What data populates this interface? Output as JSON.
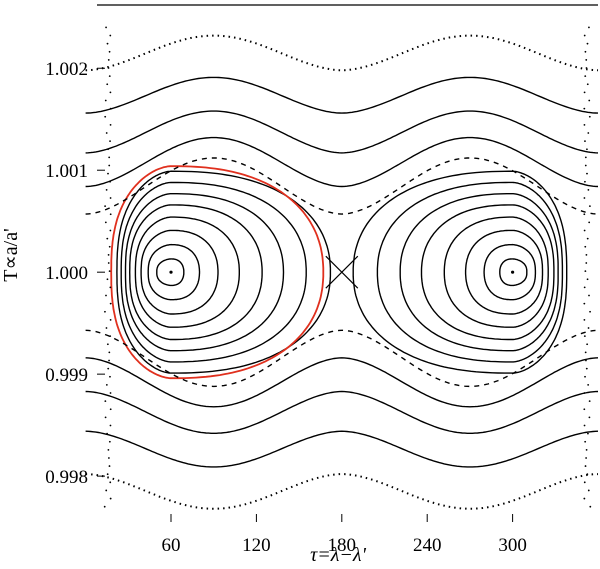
{
  "chart_data": {
    "type": "scatter",
    "xlabel": "τ=λ−λ'",
    "ylabel": "T∝a/a'",
    "xlim": [
      8,
      360
    ],
    "ylim": [
      0.99755,
      1.00263
    ],
    "xticks": [
      60,
      120,
      180,
      240,
      300
    ],
    "xtick_labels": [
      "60",
      "120",
      "180",
      "240",
      "300"
    ],
    "yticks": [
      0.998,
      0.999,
      1.0,
      1.001,
      1.002
    ],
    "ytick_labels": [
      "0.998",
      "0.999",
      "1.000",
      "1.001",
      "1.002"
    ],
    "grid": false,
    "legend": "none",
    "fixed_points": [
      {
        "tau": 60,
        "T": 1.0
      },
      {
        "tau": 300,
        "T": 1.0
      }
    ],
    "saddle_point": {
      "tau": 180,
      "T": 1.0
    },
    "tadpole_orbits": [
      {
        "tau_min": 50,
        "tau_max": 69,
        "dT": 0.00013
      },
      {
        "tau_min": 44,
        "tau_max": 80,
        "dT": 0.00027
      },
      {
        "tau_min": 39,
        "tau_max": 93,
        "dT": 0.00041
      },
      {
        "tau_min": 35,
        "tau_max": 108,
        "dT": 0.00054
      },
      {
        "tau_min": 31,
        "tau_max": 124,
        "dT": 0.00066
      },
      {
        "tau_min": 28,
        "tau_max": 139,
        "dT": 0.00077
      },
      {
        "tau_min": 25,
        "tau_max": 155,
        "dT": 0.00088
      },
      {
        "tau_min": 22,
        "tau_max": 172,
        "dT": 0.00099
      }
    ],
    "highlighted_orbit": {
      "color": "#e0301e",
      "tau_min": 18,
      "tau_max": 167,
      "dT": 0.00104
    },
    "horseshoe_orbits": [
      {
        "dT_min": 0.00057,
        "dT_max": 0.00112,
        "style": "dashed"
      },
      {
        "dT_min": 0.00084,
        "dT_max": 0.00132,
        "style": "solid"
      },
      {
        "dT_min": 0.00117,
        "dT_max": 0.00158,
        "style": "solid"
      },
      {
        "dT_min": 0.00156,
        "dT_max": 0.00191,
        "style": "solid"
      },
      {
        "dT_min": 0.00198,
        "dT_max": 0.00232,
        "style": "dotted"
      }
    ]
  }
}
